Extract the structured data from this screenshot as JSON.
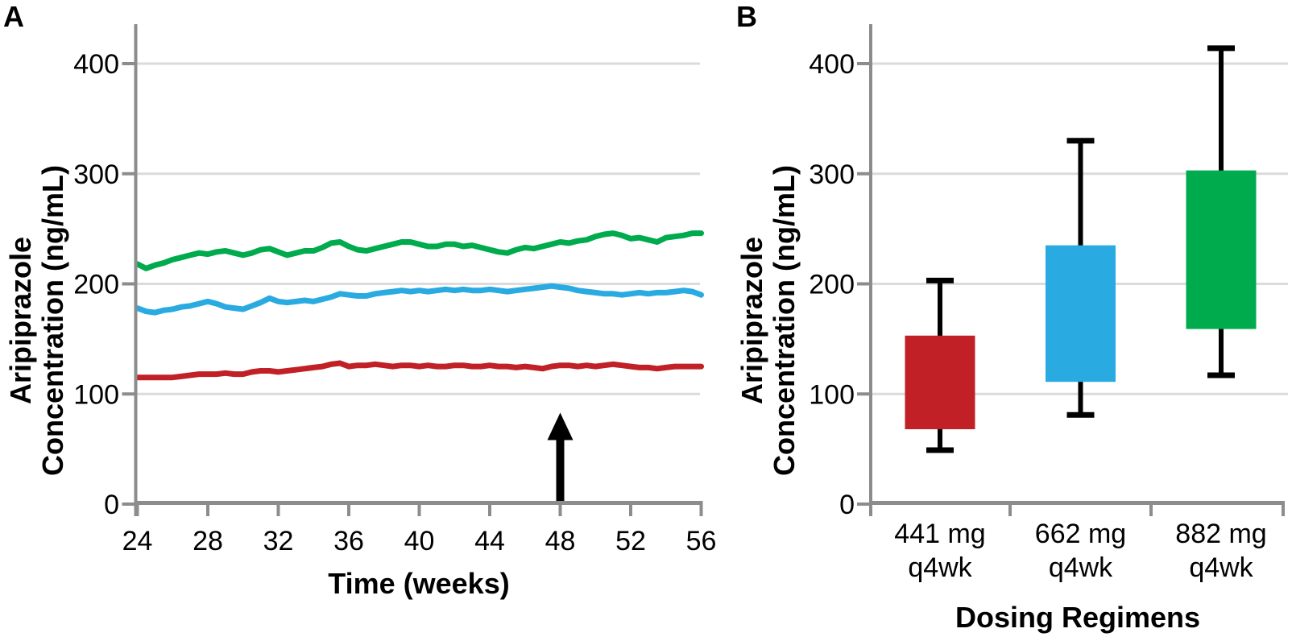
{
  "panel_a": {
    "label": "A",
    "ylabel_line1": "Aripiprazole",
    "ylabel_line2": "Concentration (ng/mL)",
    "xlabel": "Time (weeks)",
    "annotation_arrow": {
      "week": 48,
      "value_tip": 83,
      "color": "#000000"
    }
  },
  "panel_b": {
    "label": "B",
    "ylabel_line1": "Aripiprazole",
    "ylabel_line2": "Concentration (ng/mL)",
    "xlabel": "Dosing Regimens"
  },
  "colors": {
    "red": "#C02026",
    "blue": "#29ABE2",
    "green": "#00AB4E",
    "axis": "#8C8C8C",
    "gridline": "#DBDBDB",
    "whisker": "#000000",
    "text": "#000000"
  },
  "chart_data": [
    {
      "type": "line",
      "panel": "A",
      "xlabel": "Time (weeks)",
      "ylabel": "Aripiprazole Concentration (ng/mL)",
      "xlim": [
        24,
        56
      ],
      "ylim": [
        0,
        436
      ],
      "x_ticks": [
        24,
        28,
        32,
        36,
        40,
        44,
        48,
        52,
        56
      ],
      "y_ticks": [
        0,
        100,
        200,
        300,
        400
      ],
      "grid": "horizontal",
      "legend": "none",
      "annotations": [
        {
          "type": "arrow-up",
          "x": 48,
          "y_tip": 83
        }
      ],
      "x": [
        24,
        24.5,
        25,
        25.5,
        26,
        26.5,
        27,
        27.5,
        28,
        28.5,
        29,
        29.5,
        30,
        30.5,
        31,
        31.5,
        32,
        32.5,
        33,
        33.5,
        34,
        34.5,
        35,
        35.5,
        36,
        36.5,
        37,
        37.5,
        38,
        38.5,
        39,
        39.5,
        40,
        40.5,
        41,
        41.5,
        42,
        42.5,
        43,
        43.5,
        44,
        44.5,
        45,
        45.5,
        46,
        46.5,
        47,
        47.5,
        48,
        48.5,
        49,
        49.5,
        50,
        50.5,
        51,
        51.5,
        52,
        52.5,
        53,
        53.5,
        54,
        54.5,
        55,
        55.5,
        56
      ],
      "series": [
        {
          "name": "green",
          "color": "#00AB4E",
          "y": [
            218,
            214,
            217,
            219,
            222,
            224,
            226,
            228,
            227,
            229,
            230,
            228,
            226,
            228,
            231,
            232,
            229,
            226,
            228,
            230,
            230,
            233,
            237,
            238,
            234,
            231,
            230,
            232,
            234,
            236,
            238,
            238,
            236,
            234,
            234,
            236,
            236,
            234,
            235,
            233,
            231,
            229,
            228,
            231,
            233,
            232,
            234,
            236,
            238,
            237,
            239,
            240,
            243,
            245,
            246,
            244,
            241,
            242,
            240,
            238,
            242,
            243,
            244,
            246,
            246
          ]
        },
        {
          "name": "blue",
          "color": "#29ABE2",
          "y": [
            178,
            175,
            174,
            176,
            177,
            179,
            180,
            182,
            184,
            182,
            179,
            178,
            177,
            180,
            183,
            187,
            184,
            183,
            184,
            185,
            184,
            186,
            188,
            191,
            190,
            189,
            189,
            191,
            192,
            193,
            194,
            193,
            194,
            193,
            194,
            195,
            194,
            195,
            194,
            194,
            195,
            194,
            193,
            194,
            195,
            196,
            197,
            198,
            197,
            196,
            194,
            193,
            192,
            191,
            191,
            190,
            191,
            192,
            191,
            192,
            192,
            193,
            194,
            193,
            190
          ]
        },
        {
          "name": "red",
          "color": "#C02026",
          "y": [
            115,
            115,
            115,
            115,
            115,
            116,
            117,
            118,
            118,
            118,
            119,
            118,
            118,
            120,
            121,
            121,
            120,
            121,
            122,
            123,
            124,
            125,
            127,
            128,
            125,
            126,
            126,
            127,
            126,
            125,
            126,
            126,
            125,
            126,
            125,
            125,
            126,
            126,
            125,
            125,
            126,
            125,
            125,
            124,
            125,
            124,
            123,
            125,
            126,
            126,
            125,
            126,
            125,
            126,
            127,
            126,
            125,
            124,
            124,
            123,
            124,
            125,
            125,
            125,
            125
          ]
        }
      ]
    },
    {
      "type": "box",
      "panel": "B",
      "xlabel": "Dosing Regimens",
      "ylabel": "Aripiprazole Concentration (ng/mL)",
      "ylim": [
        0,
        436
      ],
      "y_ticks": [
        0,
        100,
        200,
        300,
        400
      ],
      "grid": "horizontal",
      "boxes": [
        {
          "label_line1": "441 mg",
          "label_line2": "q4wk",
          "color": "#C02026",
          "box_low": 68,
          "box_high": 153,
          "whisker_low": 49,
          "whisker_high": 203
        },
        {
          "label_line1": "662 mg",
          "label_line2": "q4wk",
          "color": "#29ABE2",
          "box_low": 111,
          "box_high": 235,
          "whisker_low": 81,
          "whisker_high": 330
        },
        {
          "label_line1": "882 mg",
          "label_line2": "q4wk",
          "color": "#00AB4E",
          "box_low": 159,
          "box_high": 303,
          "whisker_low": 117,
          "whisker_high": 414
        }
      ]
    }
  ]
}
